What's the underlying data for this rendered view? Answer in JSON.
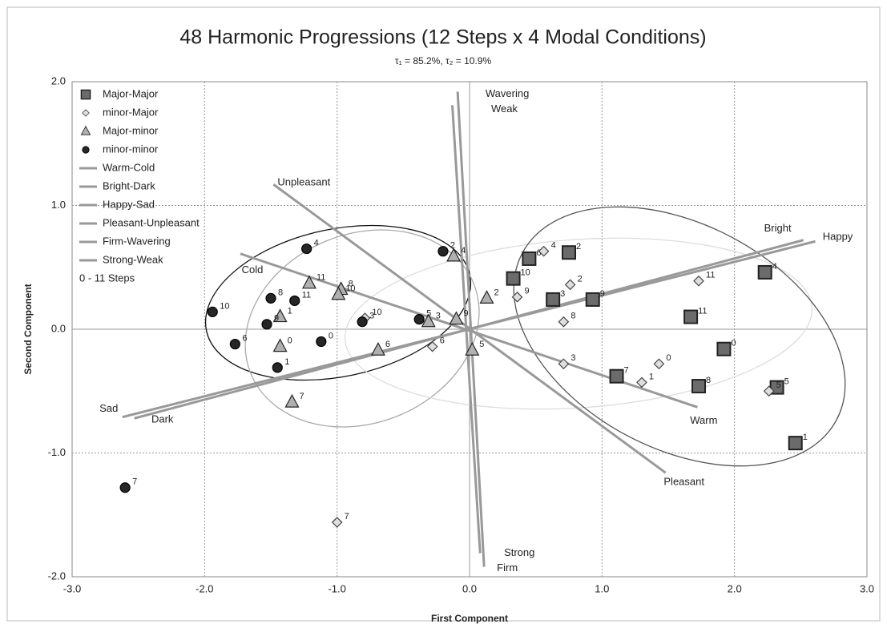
{
  "chart_data": {
    "type": "scatter",
    "title": "48 Harmonic Progressions (12 Steps x 4 Modal Conditions)",
    "subtitle": "τ₁ = 85.2%, τ₂ = 10.9%",
    "x_label": "First Component",
    "y_label": "Second Component",
    "xlim": [
      -3,
      3
    ],
    "ylim": [
      -2,
      2
    ],
    "xticks": [
      {
        "value": -3,
        "label": "-3.0"
      },
      {
        "value": -2,
        "label": "-2.0"
      },
      {
        "value": -1,
        "label": "-1.0"
      },
      {
        "value": 0,
        "label": "0.0"
      },
      {
        "value": 1,
        "label": "1.0"
      },
      {
        "value": 2,
        "label": "2.0"
      },
      {
        "value": 3,
        "label": "3.0"
      }
    ],
    "yticks": [
      {
        "value": -2,
        "label": "-2.0"
      },
      {
        "value": -1,
        "label": "-1.0"
      },
      {
        "value": 0,
        "label": "0.0"
      },
      {
        "value": 1,
        "label": "1.0"
      },
      {
        "value": 2,
        "label": "2.0"
      }
    ],
    "grid": true,
    "legend": "top-left",
    "steps_label": "0 - 11 Steps",
    "steps": [
      0,
      1,
      2,
      3,
      4,
      5,
      6,
      7,
      8,
      9,
      10,
      11
    ],
    "series": [
      {
        "name": "Major-Major",
        "marker": "square",
        "color": "#6b6b6b",
        "x": [
          1.92,
          2.46,
          0.75,
          0.63,
          2.23,
          2.32,
          0.45,
          1.11,
          1.73,
          0.93,
          0.33,
          1.67
        ],
        "values": [
          -0.16,
          -0.92,
          0.62,
          0.24,
          0.46,
          -0.47,
          0.57,
          -0.38,
          -0.46,
          0.24,
          0.41,
          0.1
        ]
      },
      {
        "name": "minor-Major",
        "marker": "diamond",
        "color": "#dedede",
        "x": [
          1.43,
          1.3,
          0.76,
          0.71,
          0.56,
          2.26,
          -0.28,
          -1.0,
          0.71,
          0.36,
          -0.79,
          1.73
        ],
        "values": [
          -0.28,
          -0.43,
          0.36,
          -0.28,
          0.63,
          -0.5,
          -0.14,
          -1.56,
          0.06,
          0.26,
          0.09,
          0.39
        ]
      },
      {
        "name": "Major-minor",
        "marker": "triangle",
        "color": "#b0b0b0",
        "x": [
          -1.43,
          -1.43,
          0.13,
          -0.31,
          -0.12,
          0.02,
          -0.69,
          -1.34,
          -0.97,
          -0.1,
          -0.99,
          -1.21
        ],
        "values": [
          -0.14,
          0.1,
          0.25,
          0.06,
          0.59,
          -0.17,
          -0.17,
          -0.59,
          0.32,
          0.08,
          0.28,
          0.37
        ]
      },
      {
        "name": "minor-minor",
        "marker": "circle",
        "color": "#262626",
        "x": [
          -1.12,
          -1.45,
          -0.2,
          -0.81,
          -1.23,
          -0.38,
          -1.77,
          -2.6,
          -1.5,
          -1.53,
          -1.94,
          -1.32
        ],
        "values": [
          -0.1,
          -0.31,
          0.63,
          0.06,
          0.65,
          0.08,
          -0.12,
          -1.28,
          0.25,
          0.04,
          0.14,
          0.23
        ]
      }
    ],
    "vectors": [
      {
        "name": "Warm-Cold",
        "color": "#999999",
        "x": [
          -1.73,
          1.72
        ],
        "values": [
          0.61,
          -0.63
        ],
        "end_labels": [
          "Cold",
          "Warm"
        ]
      },
      {
        "name": "Bright-Dark",
        "color": "#999999",
        "x": [
          2.52,
          -2.53
        ],
        "values": [
          0.72,
          -0.72
        ],
        "end_labels": [
          "Bright",
          "Dark"
        ]
      },
      {
        "name": "Happy-Sad",
        "color": "#999999",
        "x": [
          2.61,
          -2.62
        ],
        "values": [
          0.71,
          -0.71
        ],
        "end_labels": [
          "Happy",
          "Sad"
        ]
      },
      {
        "name": "Pleasant-Unpleasant",
        "color": "#999999",
        "x": [
          -1.48,
          1.48
        ],
        "values": [
          1.17,
          -1.16
        ],
        "end_labels": [
          "Unpleasant",
          "Pleasant"
        ]
      },
      {
        "name": "Firm-Wavering",
        "color": "#999999",
        "x": [
          -0.09,
          0.11
        ],
        "values": [
          1.92,
          -1.92
        ],
        "end_labels": [
          "Wavering",
          "Firm"
        ]
      },
      {
        "name": "Strong-Weak",
        "color": "#999999",
        "x": [
          -0.13,
          0.08
        ],
        "values": [
          1.81,
          -1.81
        ],
        "end_labels": [
          "Weak",
          "Strong"
        ]
      }
    ]
  }
}
